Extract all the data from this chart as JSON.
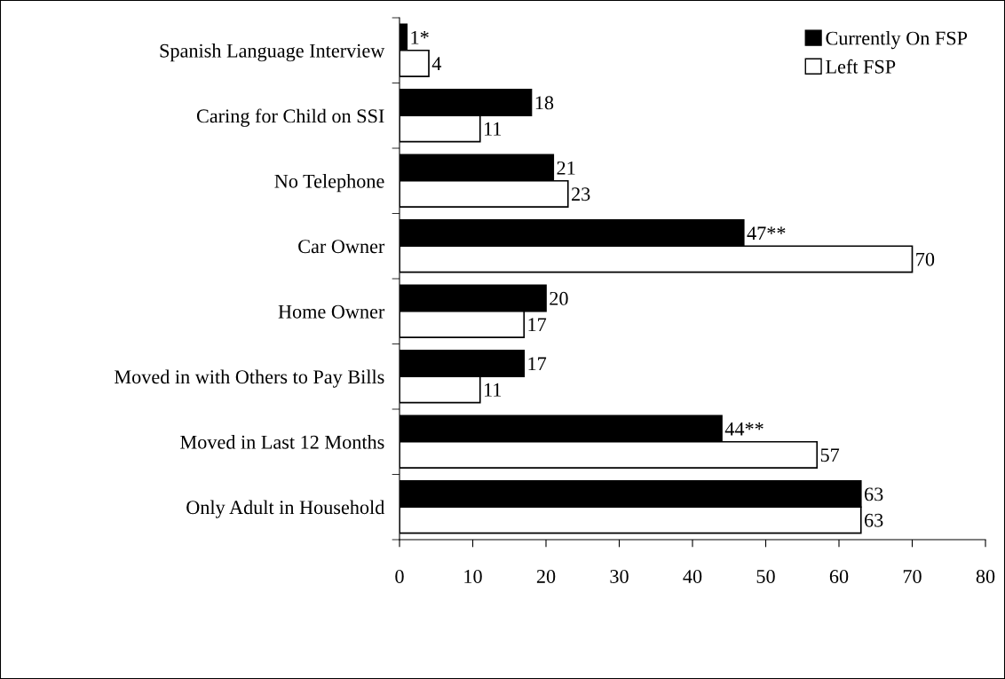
{
  "chart_data": {
    "type": "bar",
    "orientation": "horizontal",
    "categories": [
      "Spanish Language Interview",
      "Caring for Child on SSI",
      "No Telephone",
      "Car Owner",
      "Home Owner",
      "Moved in with Others to Pay Bills",
      "Moved in Last 12 Months",
      "Only Adult in Household"
    ],
    "series": [
      {
        "name": "Currently On FSP",
        "color": "#000000",
        "values": [
          1,
          18,
          21,
          47,
          20,
          17,
          44,
          63
        ],
        "value_labels": [
          "1*",
          "18",
          "21",
          "47**",
          "20",
          "17",
          "44**",
          "63"
        ]
      },
      {
        "name": "Left FSP",
        "color": "#ffffff",
        "values": [
          4,
          11,
          23,
          70,
          17,
          11,
          57,
          63
        ],
        "value_labels": [
          "4",
          "11",
          "23",
          "70",
          "17",
          "11",
          "57",
          "63"
        ]
      }
    ],
    "xlim": [
      0,
      80
    ],
    "xticks": [
      0,
      10,
      20,
      30,
      40,
      50,
      60,
      70,
      80
    ],
    "legend": "top right",
    "grid": false
  }
}
